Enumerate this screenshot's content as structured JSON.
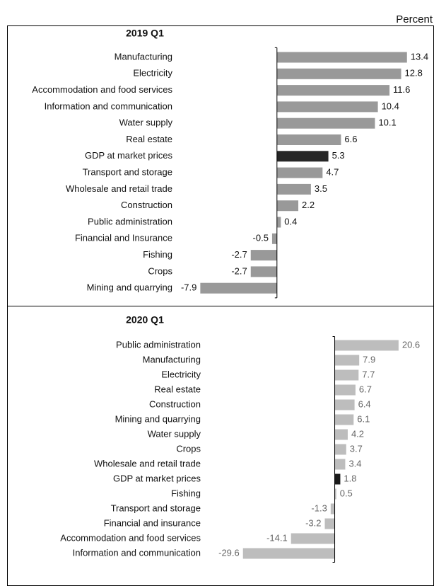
{
  "unit_label": "Percent",
  "chart_data": [
    {
      "type": "barh",
      "title": "2019 Q1",
      "categories": [
        "Manufacturing",
        "Electricity",
        "Accommodation and food services",
        "Information and communication",
        "Water supply",
        "Real estate",
        "GDP at market prices",
        "Transport and storage",
        "Wholesale and retail trade",
        "Construction",
        "Public administration",
        "Financial and Insurance",
        "Fishing",
        "Crops",
        "Mining and quarrying"
      ],
      "values": [
        13.4,
        12.8,
        11.6,
        10.4,
        10.1,
        6.6,
        5.3,
        4.7,
        3.5,
        2.2,
        0.4,
        -0.5,
        -2.7,
        -2.7,
        -7.9
      ],
      "colors": [
        "#999999",
        "#999999",
        "#999999",
        "#999999",
        "#999999",
        "#999999",
        "#262626",
        "#999999",
        "#999999",
        "#999999",
        "#999999",
        "#999999",
        "#999999",
        "#999999",
        "#999999"
      ],
      "label_color": "#111111",
      "xlim": [
        -8,
        14
      ]
    },
    {
      "type": "barh",
      "title": "2020 Q1",
      "categories": [
        "Public administration",
        "Manufacturing",
        "Electricity",
        "Real estate",
        "Construction",
        "Mining and quarrying",
        "Water supply",
        "Crops",
        "Wholesale and retail trade",
        "GDP at market prices",
        "Fishing",
        "Transport and storage",
        "Financial and insurance",
        "Accommodation and food services",
        "Information and communication"
      ],
      "values": [
        20.6,
        7.9,
        7.7,
        6.7,
        6.4,
        6.1,
        4.2,
        3.7,
        3.4,
        1.8,
        0.5,
        -1.3,
        -3.2,
        -14.1,
        -29.6
      ],
      "colors": [
        "#bdbdbd",
        "#bdbdbd",
        "#bdbdbd",
        "#bdbdbd",
        "#bdbdbd",
        "#bdbdbd",
        "#bdbdbd",
        "#bdbdbd",
        "#bdbdbd",
        "#1a1a1a",
        "#bdbdbd",
        "#bdbdbd",
        "#bdbdbd",
        "#bdbdbd",
        "#bdbdbd"
      ],
      "label_color": "#666666",
      "xlim": [
        -30,
        22
      ]
    }
  ]
}
